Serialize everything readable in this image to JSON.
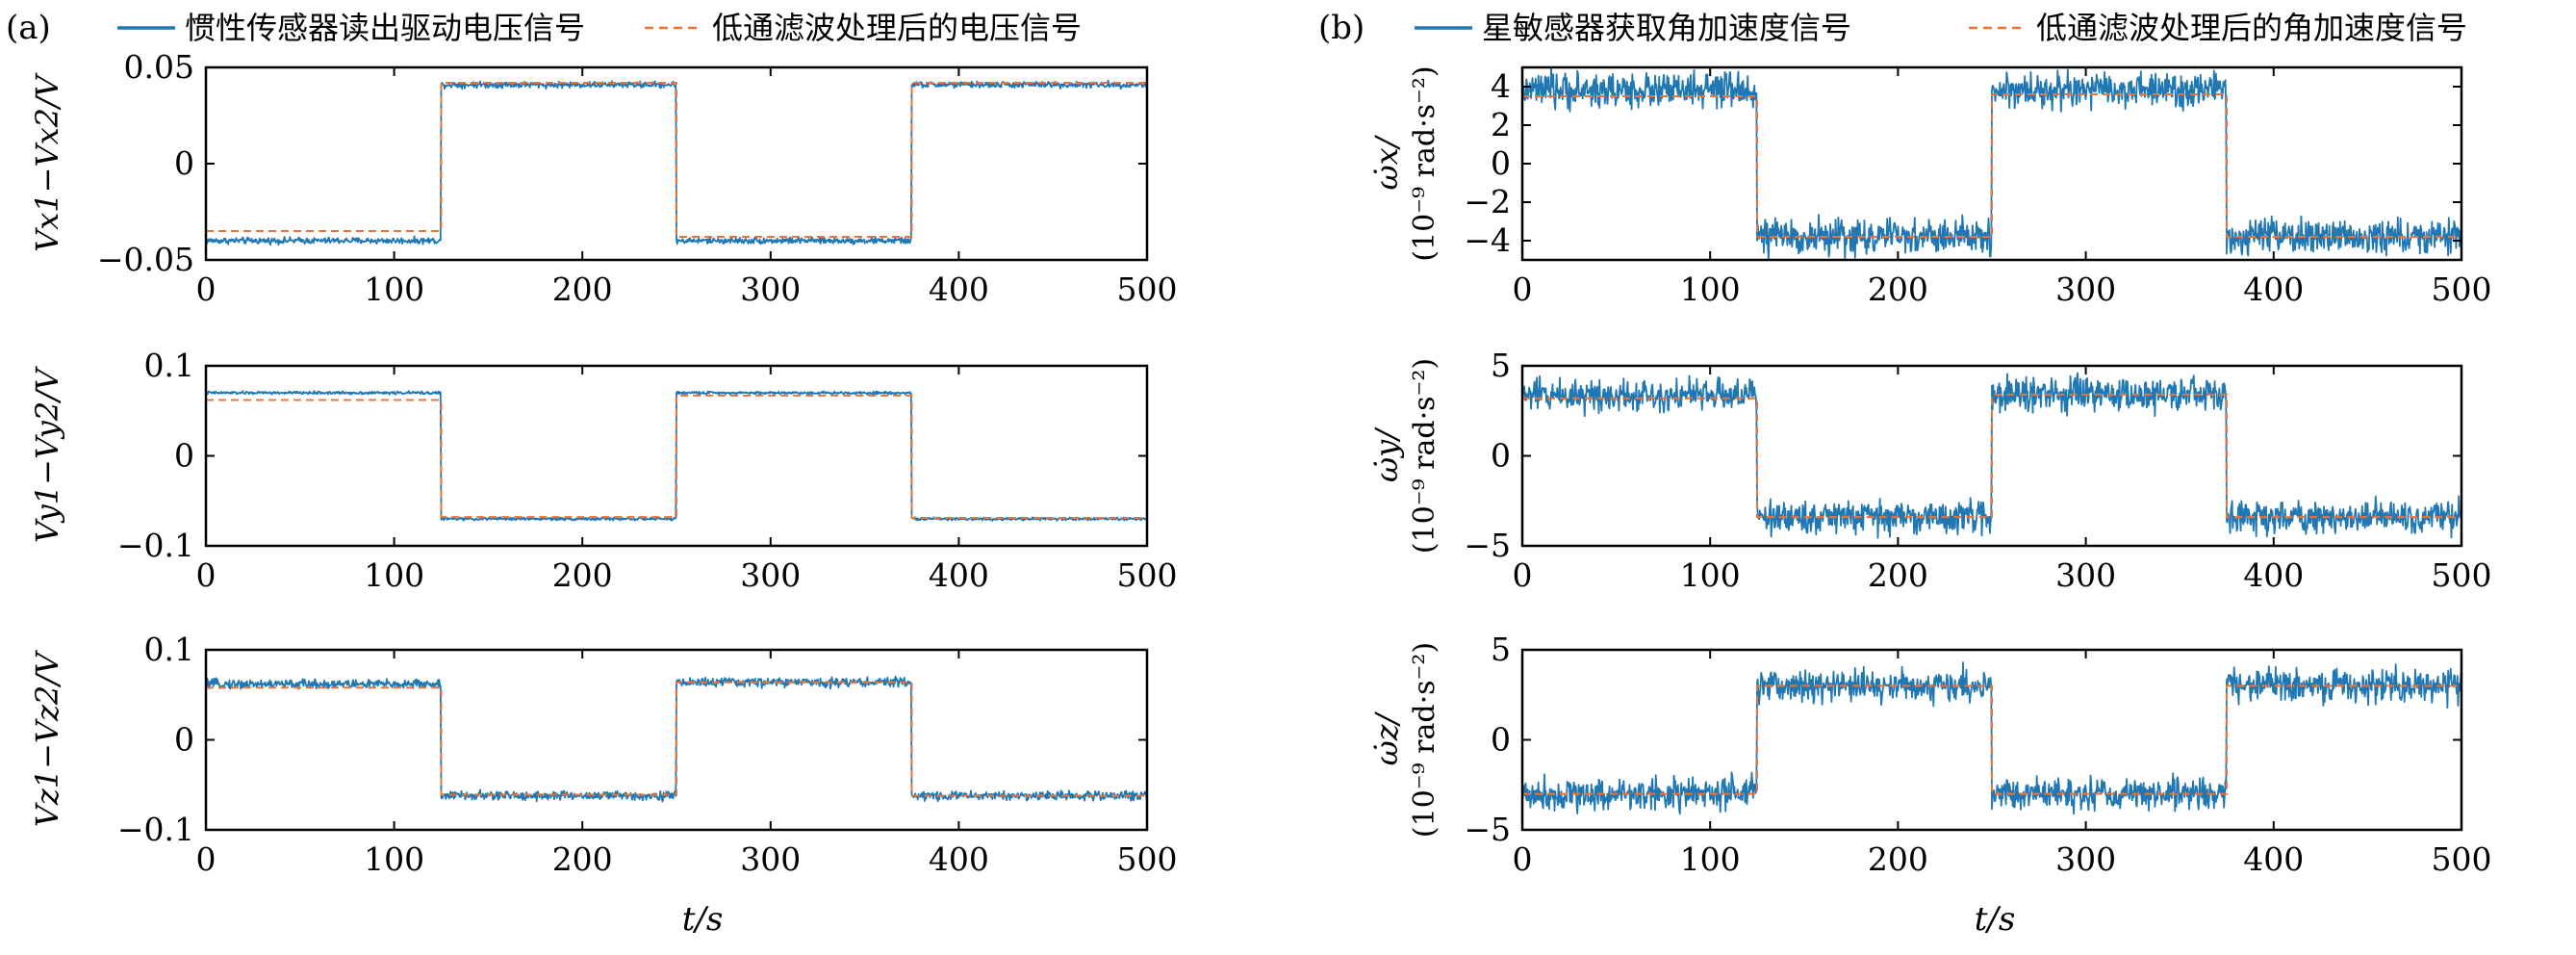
{
  "colors": {
    "measured": "#1f77b4",
    "filtered": "#e8743b",
    "axis": "#000000"
  },
  "panels": [
    {
      "id": "a",
      "label": "(a)",
      "legend": [
        {
          "text": "惯性传感器读出驱动电压信号",
          "style": "solid"
        },
        {
          "text": "低通滤波处理后的电压信号",
          "style": "dashed"
        }
      ],
      "xlabel": "t/s"
    },
    {
      "id": "b",
      "label": "(b)",
      "legend": [
        {
          "text": "星敏感器获取角加速度信号",
          "style": "solid"
        },
        {
          "text": "低通滤波处理后的角加速度信号",
          "style": "dashed"
        }
      ],
      "xlabel": "t/s"
    }
  ],
  "chart_data": [
    {
      "id": "a-x",
      "panel": "a",
      "type": "line",
      "ylabel": "Vx1−Vx2/V",
      "y_ticks": [
        "0.05",
        "0",
        "−0.05"
      ],
      "ylim": [
        -0.05,
        0.05
      ],
      "x_ticks": [
        "0",
        "100",
        "200",
        "300",
        "400",
        "500"
      ],
      "xlim": [
        0,
        500
      ],
      "segments": [
        [
          0,
          125,
          -0.04
        ],
        [
          125,
          250,
          0.041
        ],
        [
          250,
          375,
          -0.04
        ],
        [
          375,
          500,
          0.041
        ]
      ],
      "noise": 0.0008,
      "series": [
        {
          "name": "惯性传感器读出驱动电压信号",
          "style": "solid"
        },
        {
          "name": "低通滤波处理后的电压信号",
          "style": "dashed",
          "offset": [
            0.005,
            0.001,
            0.002,
            0.001
          ]
        }
      ]
    },
    {
      "id": "a-y",
      "panel": "a",
      "type": "line",
      "ylabel": "Vy1−Vy2/V",
      "y_ticks": [
        "0.1",
        "0",
        "−0.1"
      ],
      "ylim": [
        -0.1,
        0.1
      ],
      "x_ticks": [
        "0",
        "100",
        "200",
        "300",
        "400",
        "500"
      ],
      "xlim": [
        0,
        500
      ],
      "segments": [
        [
          0,
          125,
          0.07
        ],
        [
          125,
          250,
          -0.07
        ],
        [
          250,
          375,
          0.07
        ],
        [
          375,
          500,
          -0.07
        ]
      ],
      "noise": 0.0008,
      "series": [
        {
          "name": "惯性传感器读出驱动电压信号",
          "style": "solid"
        },
        {
          "name": "低通滤波处理后的电压信号",
          "style": "dashed",
          "offset": [
            -0.008,
            0.002,
            -0.003,
            0.001
          ]
        }
      ]
    },
    {
      "id": "a-z",
      "panel": "a",
      "type": "line",
      "ylabel": "Vz1−Vz2/V",
      "y_ticks": [
        "0.1",
        "0",
        "−0.1"
      ],
      "ylim": [
        -0.1,
        0.1
      ],
      "x_ticks": [
        "0",
        "100",
        "200",
        "300",
        "400",
        "500"
      ],
      "xlim": [
        0,
        500
      ],
      "segments": [
        [
          0,
          125,
          0.062
        ],
        [
          125,
          250,
          -0.062
        ],
        [
          250,
          375,
          0.064
        ],
        [
          375,
          500,
          -0.062
        ]
      ],
      "noise": 0.0025,
      "series": [
        {
          "name": "惯性传感器读出驱动电压信号",
          "style": "solid"
        },
        {
          "name": "低通滤波处理后的电压信号",
          "style": "dashed",
          "offset": [
            -0.004,
            0.001,
            0.0,
            0.0
          ]
        }
      ]
    },
    {
      "id": "b-x",
      "panel": "b",
      "type": "line",
      "ylabel": "ω̇x/",
      "ylabel2": "(10⁻⁹ rad·s⁻²)",
      "y_ticks": [
        "4",
        "2",
        "0",
        "−2",
        "−4"
      ],
      "ylim": [
        -5,
        5
      ],
      "x_ticks": [
        "0",
        "100",
        "200",
        "300",
        "400",
        "500"
      ],
      "xlim": [
        0,
        500
      ],
      "segments": [
        [
          0,
          125,
          3.8
        ],
        [
          125,
          250,
          -3.8
        ],
        [
          250,
          375,
          3.8
        ],
        [
          375,
          500,
          -3.8
        ]
      ],
      "noise": 0.45,
      "series": [
        {
          "name": "星敏感器获取角加速度信号",
          "style": "solid"
        },
        {
          "name": "低通滤波处理后的角加速度信号",
          "style": "dashed",
          "offset": [
            -0.3,
            0.0,
            -0.2,
            0.0
          ]
        }
      ]
    },
    {
      "id": "b-y",
      "panel": "b",
      "type": "line",
      "ylabel": "ω̇y/",
      "ylabel2": "(10⁻⁹ rad·s⁻²)",
      "y_ticks": [
        "5",
        "0",
        "−5"
      ],
      "ylim": [
        -5,
        5
      ],
      "x_ticks": [
        "0",
        "100",
        "200",
        "300",
        "400",
        "500"
      ],
      "xlim": [
        0,
        500
      ],
      "segments": [
        [
          0,
          125,
          3.4
        ],
        [
          125,
          250,
          -3.4
        ],
        [
          250,
          375,
          3.4
        ],
        [
          375,
          500,
          -3.4
        ]
      ],
      "noise": 0.45,
      "series": [
        {
          "name": "星敏感器获取角加速度信号",
          "style": "solid"
        },
        {
          "name": "低通滤波处理后的角加速度信号",
          "style": "dashed",
          "offset": [
            -0.2,
            0.0,
            0.0,
            0.0
          ]
        }
      ]
    },
    {
      "id": "b-z",
      "panel": "b",
      "type": "line",
      "ylabel": "ω̇z/",
      "ylabel2": "(10⁻⁹ rad·s⁻²)",
      "y_ticks": [
        "5",
        "0",
        "−5"
      ],
      "ylim": [
        -5,
        5
      ],
      "x_ticks": [
        "0",
        "100",
        "200",
        "300",
        "400",
        "500"
      ],
      "xlim": [
        0,
        500
      ],
      "segments": [
        [
          0,
          125,
          -3.0
        ],
        [
          125,
          250,
          3.0
        ],
        [
          250,
          375,
          -3.0
        ],
        [
          375,
          500,
          3.0
        ]
      ],
      "noise": 0.45,
      "series": [
        {
          "name": "星敏感器获取角加速度信号",
          "style": "solid"
        },
        {
          "name": "低通滤波处理后的角加速度信号",
          "style": "dashed",
          "offset": [
            0.0,
            0.0,
            0.0,
            0.0
          ]
        }
      ]
    }
  ]
}
